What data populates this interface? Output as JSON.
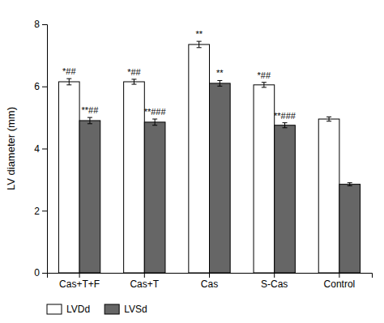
{
  "chart_data": {
    "type": "bar",
    "categories": [
      "Cas+T+F",
      "Cas+T",
      "Cas",
      "S-Cas",
      "Control"
    ],
    "series": [
      {
        "name": "LVDd",
        "color": "#ffffff",
        "values": [
          6.15,
          6.15,
          7.35,
          6.05,
          4.95
        ],
        "errors": [
          0.1,
          0.08,
          0.1,
          0.08,
          0.07
        ],
        "annotations": [
          "*##",
          "*##",
          "**",
          "*##",
          null
        ]
      },
      {
        "name": "LVSd",
        "color": "#666666",
        "values": [
          4.9,
          4.85,
          6.1,
          4.75,
          2.85
        ],
        "errors": [
          0.1,
          0.1,
          0.09,
          0.08,
          0.05
        ],
        "annotations": [
          "**##",
          "**###",
          "**",
          "**###",
          null
        ]
      }
    ],
    "ylabel": "LV diameter (mm)",
    "ylim": [
      0,
      8
    ],
    "yticks": [
      0,
      2,
      4,
      6,
      8
    ],
    "legend": "lower left"
  }
}
